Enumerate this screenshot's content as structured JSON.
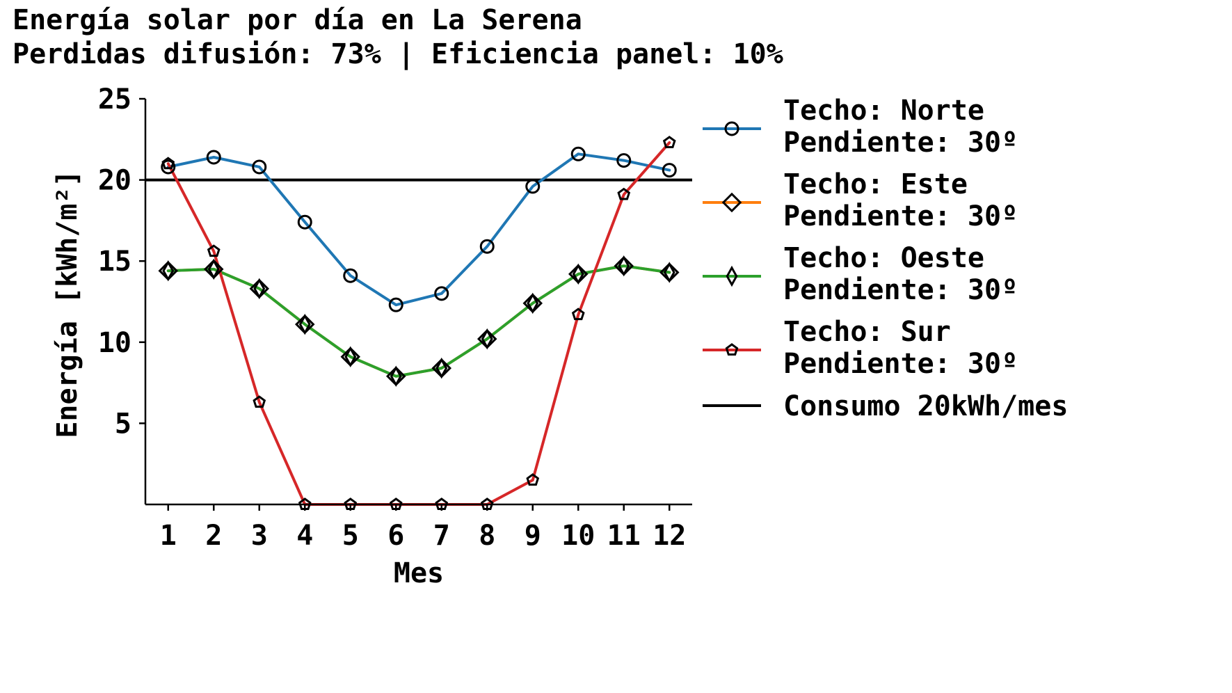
{
  "chart_data": {
    "type": "line",
    "title": "Energía solar por día en La Serena",
    "subtitle": "Perdidas difusión: 73% | Eficiencia panel: 10%",
    "xlabel": "Mes",
    "ylabel": "Energía [kWh/m²]",
    "x": [
      1,
      2,
      3,
      4,
      5,
      6,
      7,
      8,
      9,
      10,
      11,
      12
    ],
    "xlim": [
      0.5,
      12.5
    ],
    "ylim": [
      0,
      25
    ],
    "yticks": [
      5,
      10,
      15,
      20,
      25
    ],
    "grid": false,
    "legend_position": "right",
    "series": [
      {
        "name": "Techo: Norte\nPendiente: 30º",
        "color": "#1f77b4",
        "marker": "circle",
        "values": [
          20.8,
          21.4,
          20.8,
          17.4,
          14.1,
          12.3,
          13.0,
          15.9,
          19.6,
          21.6,
          21.2,
          20.6
        ]
      },
      {
        "name": "Techo: Este\nPendiente: 30º",
        "color": "#ff7f0e",
        "marker": "diamond",
        "values": [
          14.4,
          14.5,
          13.3,
          11.1,
          9.1,
          7.9,
          8.4,
          10.2,
          12.4,
          14.2,
          14.7,
          14.3
        ]
      },
      {
        "name": "Techo: Oeste\nPendiente: 30º",
        "color": "#2ca02c",
        "marker": "thin-diamond",
        "values": [
          14.4,
          14.5,
          13.3,
          11.1,
          9.1,
          7.9,
          8.4,
          10.2,
          12.4,
          14.2,
          14.7,
          14.3
        ]
      },
      {
        "name": "Techo: Sur\nPendiente: 30º",
        "color": "#d62728",
        "marker": "pentagon",
        "values": [
          21.0,
          15.6,
          6.3,
          0.0,
          0.0,
          0.0,
          0.0,
          0.0,
          1.5,
          11.7,
          19.1,
          22.3
        ]
      }
    ],
    "reference_line": {
      "name": "Consumo 20kWh/mes",
      "y": 20,
      "color": "#000000"
    }
  }
}
